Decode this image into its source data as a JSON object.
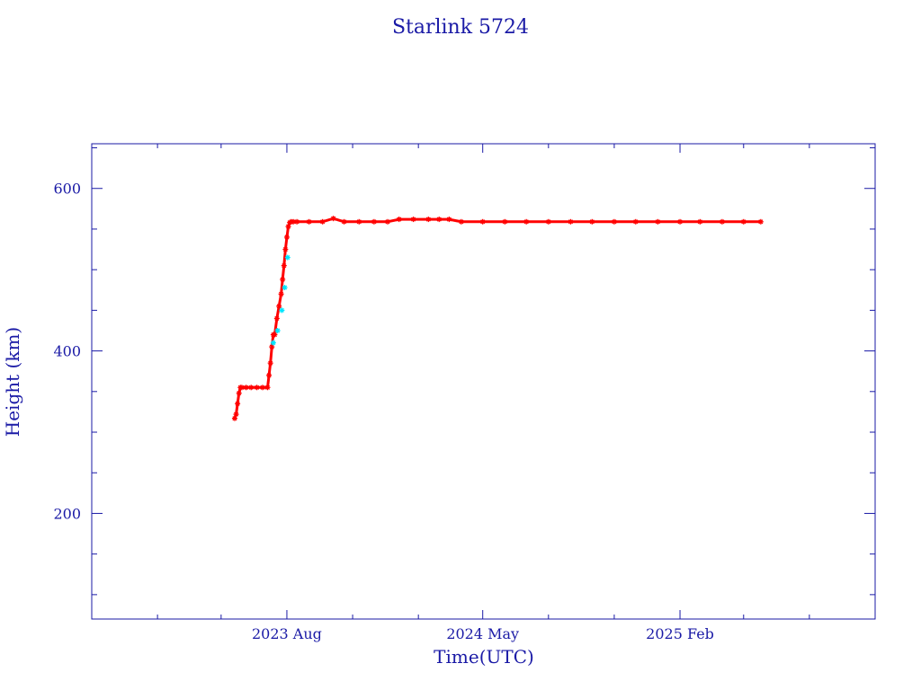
{
  "chart_data": {
    "type": "scatter",
    "title": "Starlink 5724",
    "xlabel": "Time(UTC)",
    "ylabel": "Height (km)",
    "xlim": [
      "2022-11-01",
      "2025-11-01"
    ],
    "ylim": [
      70,
      655
    ],
    "grid": false,
    "x_ticks": [
      {
        "date": "2023-08-01",
        "label": "2023 Aug"
      },
      {
        "date": "2024-05-01",
        "label": "2024 May"
      },
      {
        "date": "2025-02-01",
        "label": "2025 Feb"
      }
    ],
    "x_minor_ticks": [
      "2022-11-01",
      "2023-02-01",
      "2023-05-01",
      "2023-11-01",
      "2024-02-01",
      "2024-08-01",
      "2024-11-01",
      "2025-05-01",
      "2025-08-01",
      "2025-11-01"
    ],
    "y_ticks": [
      200,
      400,
      600
    ],
    "y_minor_ticks": [
      100,
      150,
      250,
      300,
      350,
      450,
      500,
      550,
      650
    ],
    "colors": {
      "frame": "#1a1aa6",
      "series_main": "#ff0000",
      "series_alt": "#00e5ff"
    },
    "series": [
      {
        "color": "#ff0000",
        "marker": "asterisk",
        "x": [
          "2023-05-20",
          "2023-05-22",
          "2023-05-24",
          "2023-05-26",
          "2023-05-28",
          "2023-05-30",
          "2023-06-05",
          "2023-06-12",
          "2023-06-20",
          "2023-06-28",
          "2023-07-05",
          "2023-07-07",
          "2023-07-09",
          "2023-07-11",
          "2023-07-13",
          "2023-07-15",
          "2023-07-18",
          "2023-07-21",
          "2023-07-24",
          "2023-07-26",
          "2023-07-28",
          "2023-07-30",
          "2023-08-01",
          "2023-08-03",
          "2023-08-05",
          "2023-08-07",
          "2023-08-10",
          "2023-08-15",
          "2023-09-01",
          "2023-09-20",
          "2023-10-05",
          "2023-10-20",
          "2023-11-10",
          "2023-12-01",
          "2023-12-20",
          "2024-01-05",
          "2024-01-25",
          "2024-02-15",
          "2024-03-01",
          "2024-03-15",
          "2024-04-01",
          "2024-05-01",
          "2024-06-01",
          "2024-07-01",
          "2024-08-01",
          "2024-09-01",
          "2024-10-01",
          "2024-11-01",
          "2024-12-01",
          "2025-01-01",
          "2025-02-01",
          "2025-03-01",
          "2025-04-01",
          "2025-05-01",
          "2025-05-25"
        ],
        "y": [
          317,
          322,
          335,
          348,
          355,
          355,
          355,
          355,
          355,
          355,
          355,
          370,
          385,
          405,
          420,
          420,
          440,
          455,
          470,
          488,
          505,
          525,
          540,
          553,
          558,
          559,
          559,
          559,
          559,
          559,
          563,
          559,
          559,
          559,
          559,
          562,
          562,
          562,
          562,
          562,
          559,
          559,
          559,
          559,
          559,
          559,
          559,
          559,
          559,
          559,
          559,
          559,
          559,
          559,
          559
        ]
      },
      {
        "color": "#00e5ff",
        "marker": "asterisk",
        "x": [
          "2023-07-13",
          "2023-07-19",
          "2023-07-25",
          "2023-07-29",
          "2023-08-02"
        ],
        "y": [
          410,
          425,
          450,
          478,
          515
        ]
      }
    ]
  }
}
